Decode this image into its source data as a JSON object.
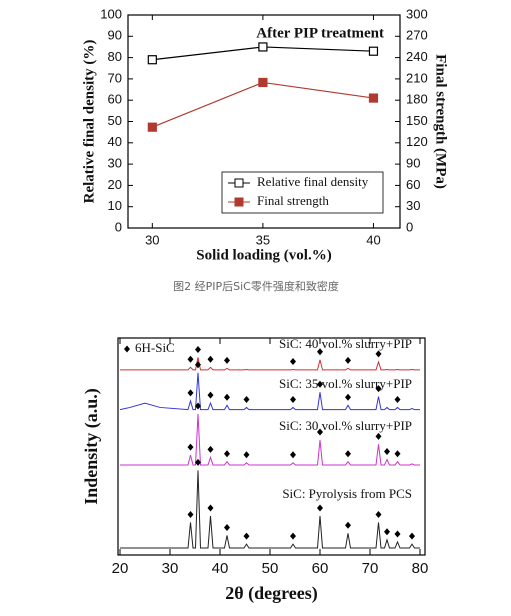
{
  "chart_data": [
    {
      "type": "line",
      "annotation": "After PIP treatment",
      "xlabel": "Solid loading (vol.%)",
      "ylabel": "Relative final density (%)",
      "y2label": "Final strength (MPa)",
      "caption": "图2 经PIP后SiC零件强度和致密度",
      "x": [
        30,
        35,
        40
      ],
      "xlim": [
        28.9,
        41.2
      ],
      "xticks": [
        30,
        35,
        40
      ],
      "ylim": [
        0,
        100
      ],
      "yticks": [
        0,
        10,
        20,
        30,
        40,
        50,
        60,
        70,
        80,
        90,
        100
      ],
      "y2lim": [
        0,
        300
      ],
      "y2ticks": [
        0,
        30,
        60,
        90,
        120,
        150,
        180,
        210,
        240,
        270,
        300
      ],
      "legend": "lower right",
      "series": [
        {
          "name": "Relative final density",
          "color": "#000000",
          "marker": "open-square",
          "values": [
            79,
            85,
            83
          ]
        },
        {
          "name": "Final strength",
          "color": "#b03a2e",
          "marker": "filled-square",
          "axis": "y2",
          "values": [
            142,
            205,
            183
          ]
        }
      ]
    },
    {
      "type": "spectrum",
      "xlabel": "2θ (degrees)",
      "ylabel": "Indensity (a.u.)",
      "marker_legend": "6H-SiC",
      "xlim": [
        19.6,
        81
      ],
      "xticks": [
        20,
        30,
        40,
        50,
        60,
        70,
        80
      ],
      "ylim": [
        0,
        100
      ],
      "x": [
        20,
        22,
        25,
        28,
        33.6,
        34.1,
        34.6,
        35.1,
        35.6,
        36.1,
        37.6,
        38.1,
        38.6,
        40.9,
        41.4,
        41.9,
        44.8,
        45.3,
        45.8,
        54.1,
        54.6,
        55.1,
        59.5,
        60.0,
        60.5,
        65.1,
        65.6,
        66.1,
        71.2,
        71.7,
        72.2,
        72.9,
        73.4,
        73.9,
        75.0,
        75.5,
        76.0,
        77.9,
        78.4,
        78.9,
        80
      ],
      "series": [
        {
          "name": "SiC: 40 vol.% slurry+PIP",
          "color": "#d03030",
          "values": [
            85.3,
            85.3,
            85.3,
            85.3,
            85.3,
            86.5,
            85.3,
            85.3,
            91,
            85.3,
            85.3,
            86.5,
            85.3,
            85.3,
            86,
            85.3,
            85.3,
            85.5,
            85.3,
            85.3,
            85.5,
            85.3,
            85.3,
            90,
            85.3,
            85.3,
            86,
            85.3,
            85.3,
            89,
            85.3,
            85.3,
            85.5,
            85.3,
            85.3,
            85.5,
            85.3,
            85.3,
            85.5,
            85.3,
            85.3
          ],
          "peak_markers": [
            34.1,
            35.6,
            38.1,
            41.4,
            54.6,
            60.0,
            65.6,
            71.7
          ]
        },
        {
          "name": "SiC: 35 vol.% slurry+PIP",
          "color": "#3535d8",
          "values": [
            67,
            68,
            70,
            68,
            67,
            71,
            67,
            67,
            84,
            67,
            67,
            70,
            67,
            67,
            69,
            67,
            67,
            68,
            67,
            67,
            68,
            67,
            67,
            75,
            67,
            67,
            69,
            67,
            67,
            73,
            67,
            67,
            68,
            67,
            67,
            68,
            67,
            67,
            67.5,
            67,
            67
          ],
          "peak_markers": [
            34.1,
            35.6,
            38.1,
            41.4,
            45.3,
            54.6,
            60.0,
            65.6,
            71.7,
            75.5
          ]
        },
        {
          "name": "SiC: 30 vol.% slurry+PIP",
          "color": "#cc33cc",
          "values": [
            41.5,
            41.5,
            41.5,
            41.5,
            41.5,
            46,
            41.5,
            41.5,
            65,
            41.5,
            41.5,
            45,
            41.5,
            41.5,
            43,
            41.5,
            41.5,
            42.5,
            41.5,
            41.5,
            42.5,
            41.5,
            41.5,
            53,
            41.5,
            41.5,
            43,
            41.5,
            41.5,
            51,
            41.5,
            41.5,
            44,
            41.5,
            41.5,
            43,
            41.5,
            41.5,
            42,
            41.5,
            41.5
          ],
          "peak_markers": [
            34.1,
            35.6,
            38.1,
            41.4,
            45.3,
            54.6,
            60.0,
            65.6,
            71.7,
            73.4,
            75.5
          ]
        },
        {
          "name": "SiC: Pyrolysis from PCS",
          "color": "#222222",
          "values": [
            3.2,
            3.2,
            3.2,
            3.2,
            3.2,
            15,
            3.2,
            3.2,
            39,
            3.2,
            3.2,
            18,
            3.2,
            3.2,
            9,
            3.2,
            3.2,
            5,
            3.2,
            3.2,
            5,
            3.2,
            3.2,
            18,
            3.2,
            3.2,
            10,
            3.2,
            3.2,
            15,
            3.2,
            3.2,
            7,
            3.2,
            3.2,
            6,
            3.2,
            3.2,
            5,
            3.2,
            3.2
          ],
          "peak_markers": [
            34.1,
            35.6,
            38.1,
            41.4,
            45.3,
            54.6,
            60.0,
            65.6,
            71.7,
            73.4,
            75.5,
            78.4
          ]
        }
      ]
    }
  ]
}
